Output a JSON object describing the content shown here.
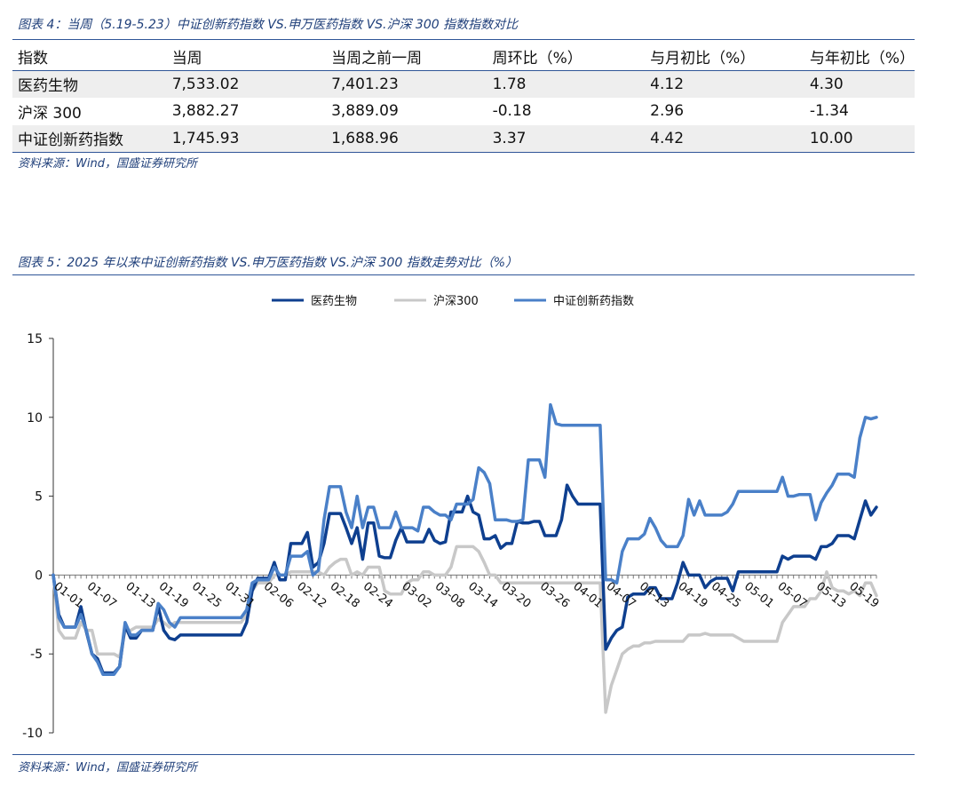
{
  "table_caption": "图表 4：当周（5.19-5.23）中证创新药指数 VS.申万医药指数 VS.沪深 300 指数指数对比",
  "table": {
    "headers": [
      "指数",
      "当周",
      "当周之前一周",
      "周环比（%）",
      "与月初比（%）",
      "与年初比（%）"
    ],
    "rows": [
      [
        "医药生物",
        "7,533.02",
        "7,401.23",
        "1.78",
        "4.12",
        "4.30"
      ],
      [
        "沪深 300",
        "3,882.27",
        "3,889.09",
        "-0.18",
        "2.96",
        "-1.34"
      ],
      [
        "中证创新药指数",
        "1,745.93",
        "1,688.96",
        "3.37",
        "4.42",
        "10.00"
      ]
    ]
  },
  "table_source": "资料来源：Wind，国盛证券研究所",
  "chart_caption": "图表 5：2025 年以来中证创新药指数 VS.申万医药指数 VS.沪深 300 指数走势对比（%）",
  "chart_source": "资料来源：Wind，国盛证券研究所",
  "chart_data": {
    "type": "line",
    "title": "",
    "xlabel": "",
    "ylabel": "",
    "ylim": [
      -10,
      15
    ],
    "yticks": [
      -10,
      -5,
      0,
      5,
      10,
      15
    ],
    "grid": false,
    "legend_position": "top-center",
    "x_tick_labels": [
      "01-01",
      "01-07",
      "01-13",
      "01-19",
      "01-25",
      "01-31",
      "02-06",
      "02-12",
      "02-18",
      "02-24",
      "03-02",
      "03-08",
      "03-14",
      "03-20",
      "03-26",
      "04-01",
      "04-07",
      "04-13",
      "04-19",
      "04-25",
      "05-01",
      "05-07",
      "05-13",
      "05-19"
    ],
    "series": [
      {
        "name": "医药生物",
        "color": "#0e3f8f",
        "values": [
          0,
          -2.5,
          -3.3,
          -3.3,
          -3.3,
          -2.0,
          -3.6,
          -5.0,
          -5.3,
          -6.2,
          -6.2,
          -6.2,
          -5.8,
          -3.2,
          -4.0,
          -4.0,
          -3.5,
          -3.5,
          -3.5,
          -2.0,
          -3.5,
          -4.0,
          -4.1,
          -3.8,
          -3.8,
          -3.8,
          -3.8,
          -3.8,
          -3.8,
          -3.8,
          -3.8,
          -3.8,
          -3.8,
          -3.8,
          -3.8,
          -3.0,
          -1.0,
          -0.2,
          -0.2,
          -0.2,
          0.8,
          -0.3,
          -0.3,
          2.0,
          2.0,
          2.0,
          2.7,
          0.5,
          0.8,
          2.0,
          3.9,
          3.9,
          3.9,
          3.0,
          2.0,
          3.0,
          1.0,
          3.3,
          3.3,
          1.2,
          1.1,
          1.1,
          2.2,
          3.0,
          2.1,
          2.1,
          2.1,
          2.1,
          2.9,
          2.2,
          2.0,
          2.1,
          4.0,
          4.0,
          4.0,
          5.0,
          4.0,
          3.8,
          2.3,
          2.3,
          2.5,
          1.7,
          2.0,
          2.0,
          3.4,
          3.3,
          3.3,
          3.4,
          3.4,
          2.5,
          2.5,
          2.5,
          3.5,
          5.7,
          5.0,
          4.5,
          4.5,
          4.5,
          4.5,
          4.5,
          -4.7,
          -4.0,
          -3.5,
          -3.3,
          -1.4,
          -1.2,
          -1.2,
          -1.2,
          -0.8,
          -0.8,
          -1.5,
          -1.5,
          -1.5,
          -0.5,
          0.8,
          0.0,
          0.0,
          0.0,
          -0.8,
          -0.4,
          -0.2,
          -0.2,
          -0.2,
          -1.0,
          0.2,
          0.2,
          0.2,
          0.2,
          0.2,
          0.2,
          0.2,
          0.2,
          1.2,
          1.0,
          1.2,
          1.2,
          1.2,
          1.2,
          1.0,
          1.8,
          1.8,
          2.0,
          2.5,
          2.5,
          2.5,
          2.3,
          3.5,
          4.7,
          3.8,
          4.3
        ]
      },
      {
        "name": "沪深300",
        "color": "#c8c8c8",
        "values": [
          0,
          -3.5,
          -4.0,
          -4.0,
          -4.0,
          -3.0,
          -3.5,
          -3.5,
          -5.0,
          -5.0,
          -5.0,
          -5.0,
          -5.2,
          -3.5,
          -3.5,
          -3.3,
          -3.3,
          -3.3,
          -3.3,
          -2.8,
          -3.0,
          -3.3,
          -3.0,
          -3.0,
          -3.0,
          -3.0,
          -3.0,
          -3.0,
          -3.0,
          -3.0,
          -3.0,
          -3.0,
          -3.0,
          -3.0,
          -3.0,
          -2.5,
          -1.0,
          -0.5,
          -0.5,
          -0.5,
          0.0,
          0.0,
          0.0,
          0.2,
          0.2,
          0.2,
          0.2,
          0.2,
          0.2,
          0.0,
          0.5,
          0.8,
          1.0,
          1.0,
          0.0,
          0.2,
          0.0,
          0.5,
          0.5,
          0.5,
          -1.0,
          -1.2,
          -1.2,
          -1.2,
          -0.5,
          -0.3,
          -0.3,
          0.2,
          0.2,
          0.0,
          0.0,
          0.0,
          0.5,
          1.8,
          1.8,
          1.8,
          1.8,
          1.5,
          0.8,
          0.0,
          0.0,
          -0.5,
          -0.5,
          -0.5,
          -0.5,
          -0.5,
          -0.5,
          -0.5,
          -0.5,
          -0.5,
          -0.5,
          -0.5,
          -0.5,
          -0.5,
          -0.5,
          -0.5,
          -0.5,
          -0.5,
          -0.5,
          -0.5,
          -8.7,
          -7.0,
          -6.0,
          -5.0,
          -4.7,
          -4.5,
          -4.5,
          -4.3,
          -4.3,
          -4.2,
          -4.2,
          -4.2,
          -4.2,
          -4.2,
          -4.2,
          -3.8,
          -3.8,
          -3.8,
          -3.7,
          -3.8,
          -3.8,
          -3.8,
          -3.8,
          -3.8,
          -4.0,
          -4.2,
          -4.2,
          -4.2,
          -4.2,
          -4.2,
          -4.2,
          -4.2,
          -3.0,
          -2.5,
          -2.0,
          -2.0,
          -2.0,
          -1.5,
          -1.5,
          -1.0,
          0.2,
          -0.8,
          -1.0,
          -1.0,
          -1.2,
          -1.0,
          -1.3,
          -0.5,
          -0.5,
          -1.3
        ]
      },
      {
        "name": "中证创新药指数",
        "color": "#4a80c8",
        "values": [
          0,
          -2.7,
          -3.3,
          -3.3,
          -3.3,
          -2.5,
          -3.5,
          -5.0,
          -5.5,
          -6.3,
          -6.3,
          -6.3,
          -5.8,
          -3.0,
          -3.8,
          -3.8,
          -3.5,
          -3.5,
          -3.5,
          -1.8,
          -2.2,
          -3.0,
          -3.3,
          -2.7,
          -2.7,
          -2.7,
          -2.7,
          -2.7,
          -2.7,
          -2.7,
          -2.7,
          -2.7,
          -2.7,
          -2.7,
          -2.7,
          -2.2,
          -0.5,
          -0.3,
          -0.3,
          -0.3,
          0.5,
          0.0,
          0.0,
          1.2,
          1.2,
          1.2,
          1.5,
          0.0,
          0.3,
          3.5,
          5.6,
          5.6,
          5.6,
          4.0,
          3.0,
          5.0,
          3.0,
          4.3,
          4.3,
          3.0,
          3.0,
          3.0,
          4.0,
          3.0,
          3.0,
          3.0,
          2.8,
          4.3,
          4.3,
          4.0,
          3.8,
          3.8,
          3.5,
          4.5,
          4.5,
          4.5,
          4.8,
          6.8,
          6.5,
          5.8,
          3.5,
          3.5,
          3.5,
          3.4,
          3.4,
          3.5,
          7.3,
          7.3,
          7.3,
          6.2,
          10.8,
          9.6,
          9.5,
          9.5,
          9.5,
          9.5,
          9.5,
          9.5,
          9.5,
          9.5,
          -0.3,
          -0.3,
          -0.5,
          1.5,
          2.3,
          2.3,
          2.3,
          2.6,
          3.6,
          3.0,
          2.2,
          1.8,
          1.8,
          1.8,
          2.5,
          4.8,
          3.8,
          4.7,
          3.8,
          3.8,
          3.8,
          3.8,
          4.0,
          4.5,
          5.3,
          5.3,
          5.3,
          5.3,
          5.3,
          5.3,
          5.3,
          5.3,
          6.2,
          5.0,
          5.0,
          5.1,
          5.1,
          5.1,
          3.5,
          4.6,
          5.2,
          5.7,
          6.4,
          6.4,
          6.4,
          6.2,
          8.7,
          10.0,
          9.9,
          10.0
        ]
      }
    ]
  }
}
